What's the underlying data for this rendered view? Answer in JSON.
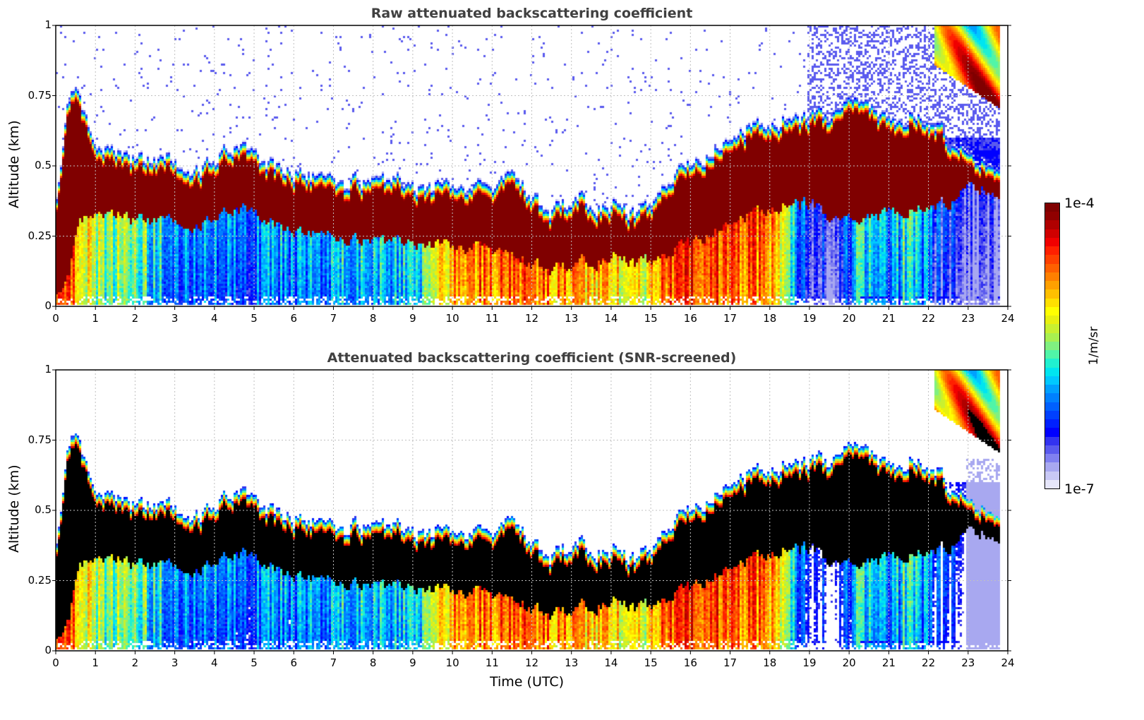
{
  "chart_data": [
    {
      "type": "heatmap",
      "title": "Raw attenuated backscattering coefficient",
      "xlabel": "",
      "ylabel": "Altitude (km)",
      "xlim": [
        0,
        24
      ],
      "ylim": [
        0,
        1
      ],
      "xticks": [
        "0",
        "1",
        "2",
        "3",
        "4",
        "5",
        "6",
        "7",
        "8",
        "9",
        "10",
        "11",
        "12",
        "13",
        "14",
        "15",
        "16",
        "17",
        "18",
        "19",
        "20",
        "21",
        "22",
        "23",
        "24"
      ],
      "yticks": [
        "0",
        "0.25",
        "0.5",
        "0.75",
        "1"
      ],
      "grid": true,
      "screened": false
    },
    {
      "type": "heatmap",
      "title": "Attenuated backscattering coefficient (SNR-screened)",
      "xlabel": "Time (UTC)",
      "ylabel": "Altitude (km)",
      "xlim": [
        0,
        24
      ],
      "ylim": [
        0,
        1
      ],
      "xticks": [
        "0",
        "1",
        "2",
        "3",
        "4",
        "5",
        "6",
        "7",
        "8",
        "9",
        "10",
        "11",
        "12",
        "13",
        "14",
        "15",
        "16",
        "17",
        "18",
        "19",
        "20",
        "21",
        "22",
        "23",
        "24"
      ],
      "yticks": [
        "0",
        "0.25",
        "0.5",
        "0.75",
        "1"
      ],
      "grid": true,
      "screened": true
    }
  ],
  "layer_profile": {
    "hours": [
      0,
      0.3,
      0.6,
      1,
      2,
      3,
      4,
      4.5,
      5,
      6,
      7,
      8,
      9,
      10,
      11,
      11.5,
      12,
      12.4,
      13,
      14,
      14.7,
      15.3,
      16,
      17,
      18,
      18.9,
      19.5,
      20.2,
      21,
      21.5,
      22.3,
      23,
      23.8
    ],
    "top_km": [
      0.35,
      0.7,
      0.68,
      0.52,
      0.47,
      0.45,
      0.46,
      0.53,
      0.49,
      0.43,
      0.4,
      0.4,
      0.38,
      0.38,
      0.36,
      0.42,
      0.34,
      0.26,
      0.34,
      0.31,
      0.27,
      0.36,
      0.45,
      0.56,
      0.61,
      0.62,
      0.64,
      0.7,
      0.6,
      0.64,
      0.58,
      0.48,
      0.48
    ],
    "base_km": [
      0.05,
      0.1,
      0.3,
      0.33,
      0.3,
      0.29,
      0.3,
      0.35,
      0.32,
      0.27,
      0.24,
      0.23,
      0.22,
      0.21,
      0.19,
      0.17,
      0.15,
      0.1,
      0.15,
      0.17,
      0.14,
      0.16,
      0.22,
      0.3,
      0.35,
      0.36,
      0.32,
      0.3,
      0.33,
      0.34,
      0.35,
      0.42,
      0.42
    ],
    "below_level": [
      0.85,
      0.9,
      0.7,
      0.55,
      0.5,
      0.35,
      0.32,
      0.35,
      0.33,
      0.34,
      0.36,
      0.38,
      0.4,
      0.75,
      0.78,
      0.8,
      0.78,
      0.75,
      0.72,
      0.65,
      0.62,
      0.78,
      0.88,
      0.82,
      0.8,
      0.2,
      0.18,
      0.4,
      0.35,
      0.45,
      0.2,
      0.15,
      0.15
    ],
    "upper_cloud": {
      "start_hour": 22.1,
      "end_hour": 23.8,
      "top_km": 1.0,
      "base_km_start": 0.86,
      "base_km_end": 0.7
    }
  },
  "colorbar": {
    "max_label": "1e-4",
    "min_label": "1e-7",
    "unit": "1/m/sr",
    "colors": [
      "#e6e6fa",
      "#c8c8f5",
      "#a8a8f0",
      "#8080f0",
      "#5a5aee",
      "#3333f0",
      "#0000ff",
      "#0020ff",
      "#0040ff",
      "#0060ff",
      "#0080ff",
      "#00a0ff",
      "#00c8ff",
      "#00e5f0",
      "#20f0d0",
      "#50f5a8",
      "#80f080",
      "#a8f050",
      "#c8f030",
      "#e8f010",
      "#ffff00",
      "#ffe000",
      "#ffc000",
      "#ffa000",
      "#ff8000",
      "#ff6000",
      "#ff4000",
      "#ff2000",
      "#f00000",
      "#d00000",
      "#b00000",
      "#900000",
      "#800000"
    ]
  },
  "colors": {
    "screen_saturation": "#000000",
    "axis": "#000000",
    "grid": "#c0c0c0",
    "title": "#404040"
  }
}
